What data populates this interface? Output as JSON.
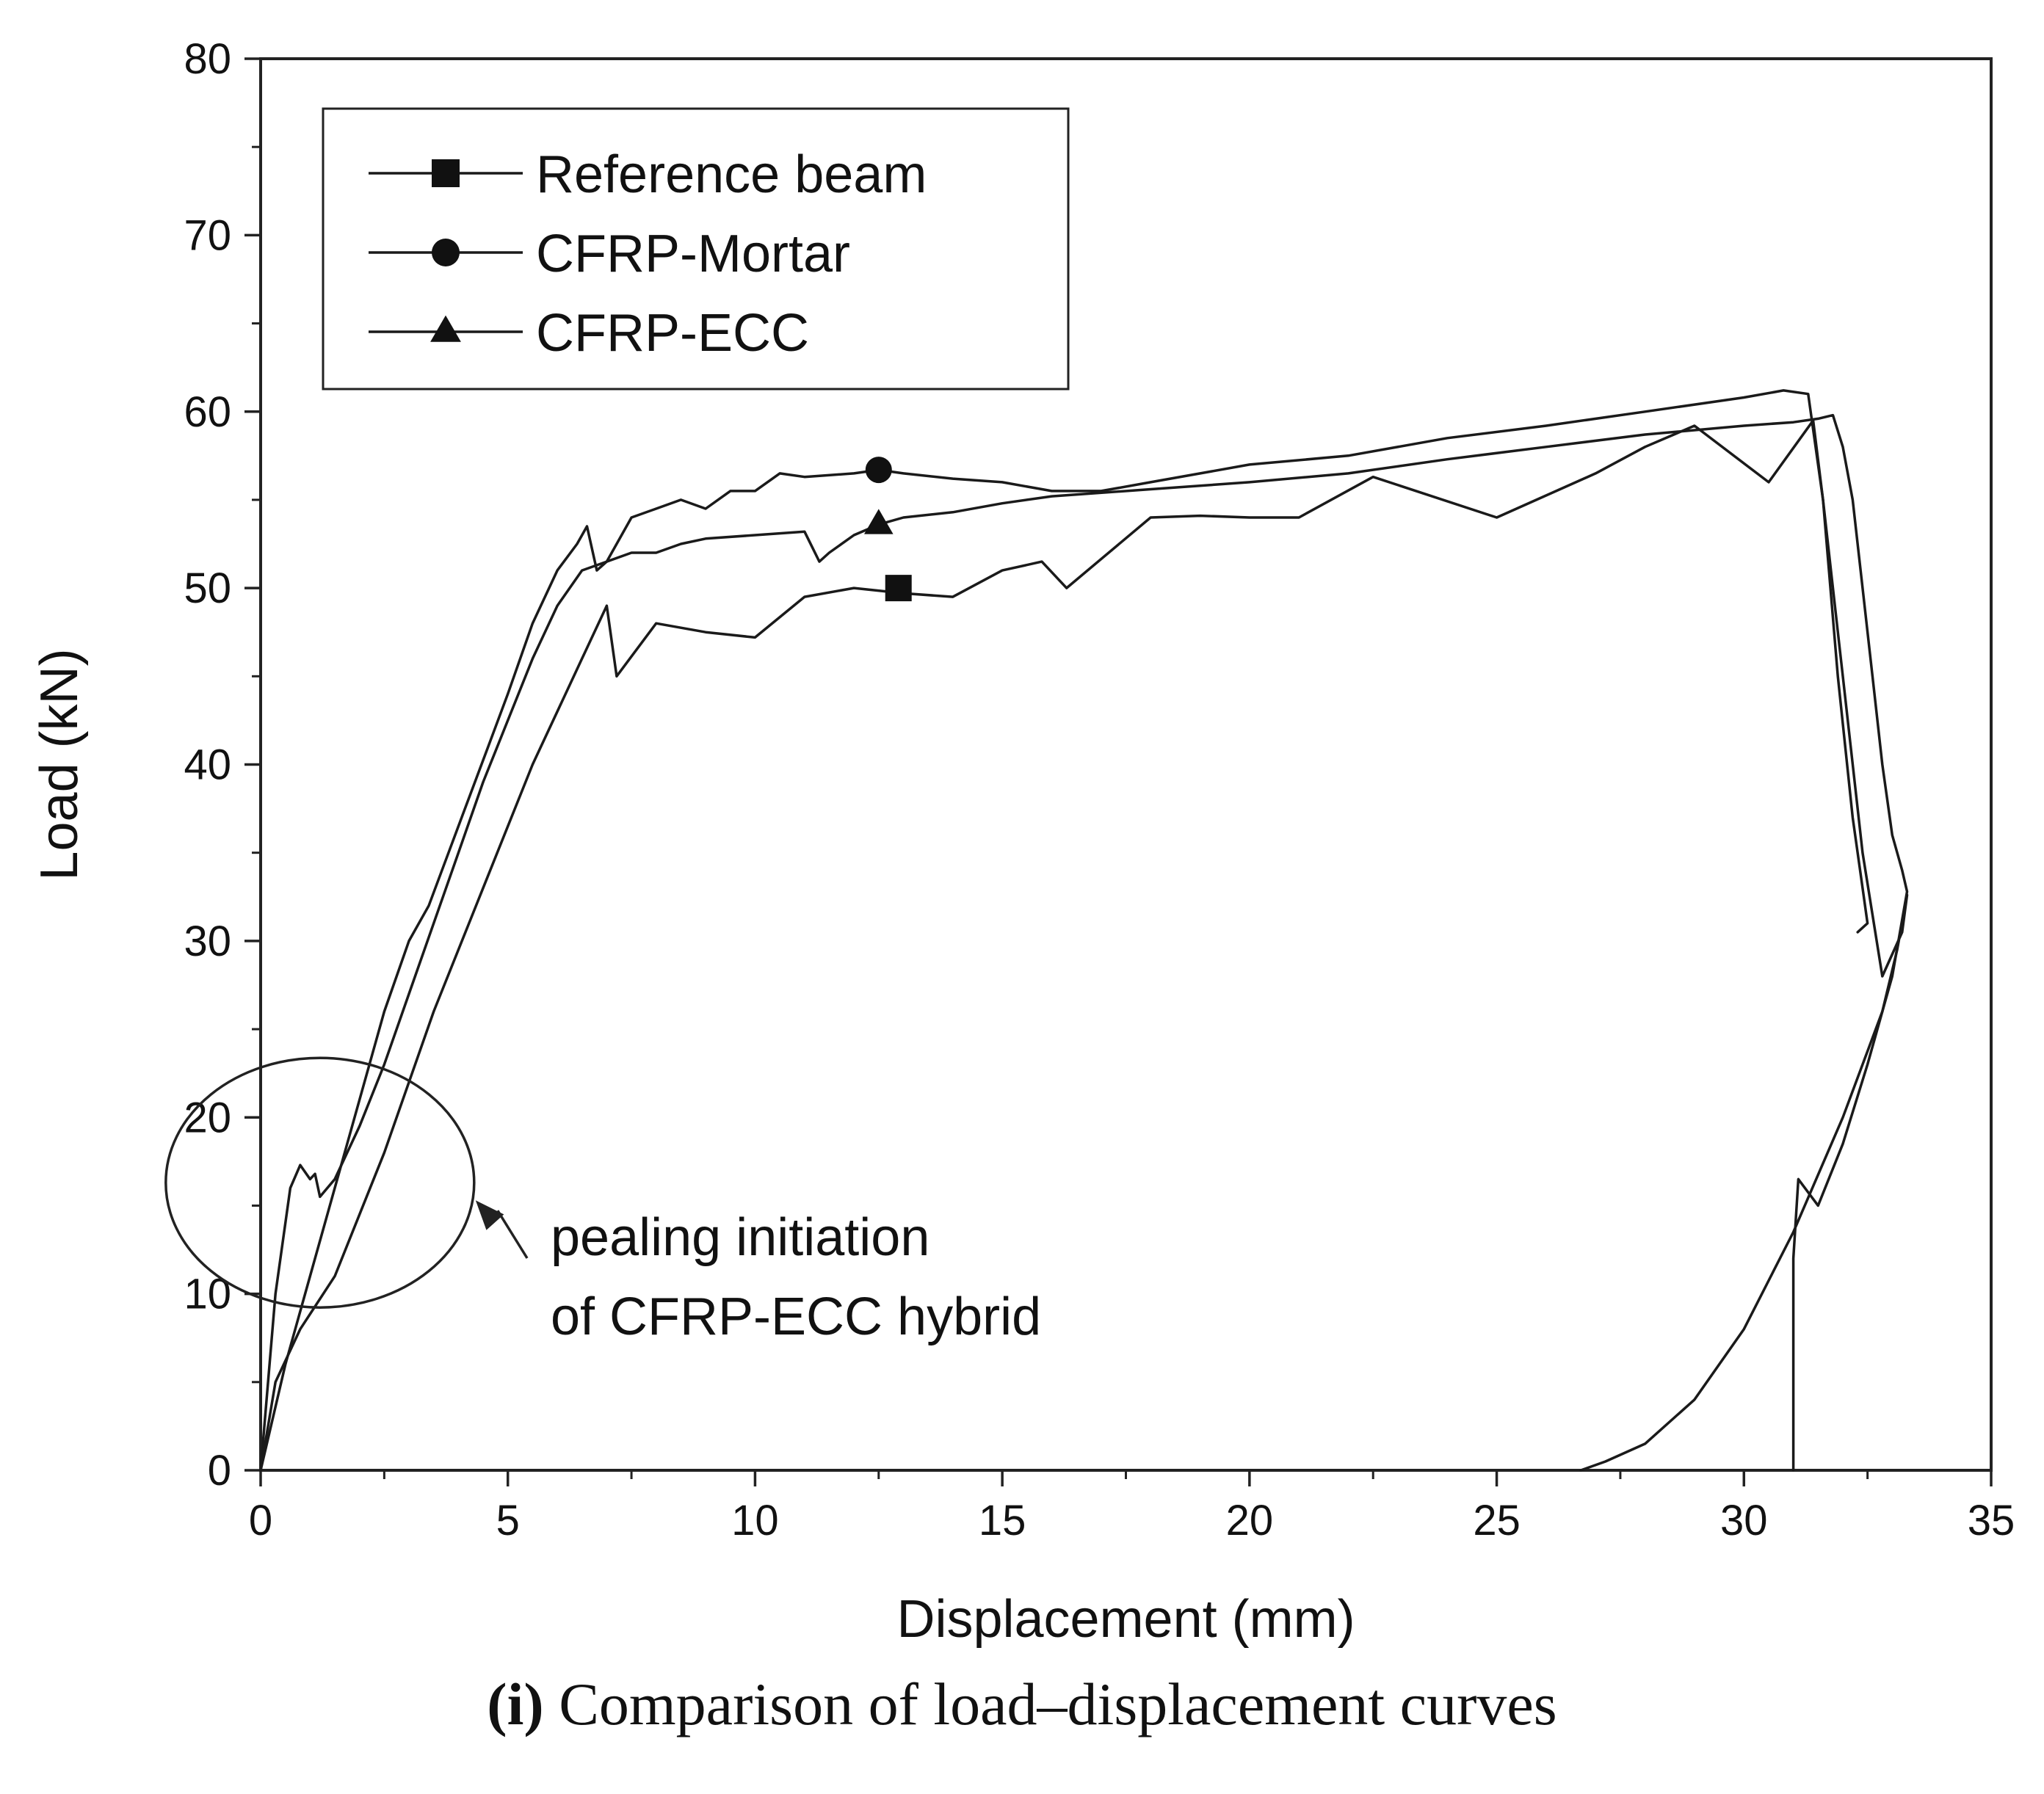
{
  "chart_data": {
    "type": "line",
    "title": "",
    "xlabel": "Displacement (mm)",
    "ylabel": "Load (kN)",
    "xlim": [
      0,
      35
    ],
    "ylim": [
      0,
      80
    ],
    "xticks": [
      0,
      5,
      10,
      15,
      20,
      25,
      30,
      35
    ],
    "yticks": [
      0,
      10,
      20,
      30,
      40,
      50,
      60,
      70,
      80
    ],
    "grid": false,
    "legend_position": "top-left",
    "series": [
      {
        "name": "Reference beam",
        "marker": "square",
        "marker_point": [
          12.9,
          50
        ],
        "x": [
          0,
          0.3,
          0.8,
          1.5,
          2.5,
          3.5,
          4.5,
          5.5,
          6.5,
          7.0,
          7.2,
          8.0,
          9.0,
          10.0,
          11.0,
          12.0,
          13.0,
          14.0,
          15.0,
          15.8,
          16.3,
          18.0,
          19.0,
          20.0,
          21.0,
          22.5,
          25.0,
          27.0,
          28.0,
          29.0,
          30.5,
          31.4,
          31.6,
          32.0,
          32.4,
          32.8,
          33.2,
          33.3,
          33.1,
          32.8,
          32.0,
          31.0,
          30.0,
          29.0,
          28.0,
          27.2,
          26.8,
          26.7
        ],
        "y": [
          0,
          5,
          8,
          11,
          18,
          26,
          33,
          40,
          46,
          49,
          45,
          48,
          47.5,
          47.2,
          49.5,
          50.0,
          49.7,
          49.5,
          51.0,
          51.5,
          50.0,
          54.0,
          54.1,
          54.0,
          54.0,
          56.3,
          54.0,
          56.5,
          58.0,
          59.2,
          56.0,
          59.5,
          55.0,
          45.0,
          35.0,
          28.0,
          30.5,
          32.6,
          29.5,
          26.0,
          20.0,
          13.5,
          8.0,
          4.0,
          1.5,
          0.5,
          0.1,
          0
        ]
      },
      {
        "name": "CFRP-Mortar",
        "marker": "circle",
        "marker_point": [
          12.5,
          56.7
        ],
        "x": [
          0,
          0.5,
          1.0,
          1.5,
          2.0,
          2.5,
          3.0,
          3.4,
          3.8,
          4.2,
          4.6,
          5.0,
          5.5,
          6.0,
          6.4,
          6.6,
          6.8,
          7.0,
          7.5,
          8.0,
          8.5,
          9.0,
          9.5,
          10.0,
          10.5,
          11.0,
          12.0,
          12.5,
          13.0,
          14.0,
          15.0,
          16.0,
          17.0,
          18.0,
          20.0,
          22.0,
          24.0,
          26.0,
          28.0,
          30.0,
          30.8,
          31.3,
          31.6,
          31.9,
          32.2,
          32.4,
          32.5,
          32.3
        ],
        "y": [
          0,
          6,
          11,
          16,
          21,
          26,
          30,
          32,
          35,
          38,
          41,
          44,
          48,
          51,
          52.5,
          53.5,
          51,
          51.5,
          54,
          54.5,
          55,
          54.5,
          55.5,
          55.5,
          56.5,
          56.3,
          56.5,
          56.7,
          56.5,
          56.2,
          56.0,
          55.5,
          55.5,
          56.0,
          57.0,
          57.5,
          58.5,
          59.2,
          60.0,
          60.8,
          61.2,
          61.0,
          55.0,
          45.0,
          37.0,
          33.0,
          31.0,
          30.5
        ]
      },
      {
        "name": "CFRP-ECC",
        "marker": "triangle",
        "marker_point": [
          12.5,
          53.6
        ],
        "x": [
          0,
          0.3,
          0.6,
          0.8,
          1.0,
          1.1,
          1.2,
          1.5,
          2.0,
          2.5,
          3.0,
          3.5,
          4.0,
          4.5,
          5.0,
          5.5,
          6.0,
          6.5,
          7.0,
          7.5,
          8.0,
          8.5,
          9.0,
          10.0,
          11.0,
          11.3,
          11.5,
          12.0,
          12.5,
          13.0,
          14.0,
          15.0,
          16.0,
          18.0,
          20.0,
          22.0,
          24.0,
          26.0,
          28.0,
          30.0,
          31.0,
          31.5,
          31.8,
          32.0,
          32.2,
          32.4,
          32.6,
          32.8,
          33.0,
          33.2,
          33.3,
          33.0,
          32.5,
          32.0,
          31.5,
          31.1,
          31.0,
          31.0
        ],
        "y": [
          0,
          10,
          16,
          17.3,
          16.5,
          16.8,
          15.5,
          16.5,
          19.5,
          23,
          27,
          31,
          35,
          39,
          42.5,
          46,
          49,
          51,
          51.5,
          52,
          52,
          52.5,
          52.8,
          53.0,
          53.2,
          51.5,
          52.0,
          53.0,
          53.6,
          54.0,
          54.3,
          54.8,
          55.2,
          55.6,
          56.0,
          56.5,
          57.3,
          58.0,
          58.7,
          59.2,
          59.4,
          59.6,
          59.8,
          58.0,
          55.0,
          50.0,
          45.0,
          40.0,
          36.0,
          34.0,
          32.8,
          28.0,
          23.0,
          18.5,
          15.0,
          16.5,
          12.0,
          0
        ]
      }
    ],
    "annotation": {
      "lines": [
        "pealing initiation",
        "of CFRP-ECC hybrid"
      ],
      "target": [
        1.2,
        16.3
      ]
    }
  },
  "caption": {
    "label": "(i)",
    "text": " Comparison of load–displacement curves"
  }
}
